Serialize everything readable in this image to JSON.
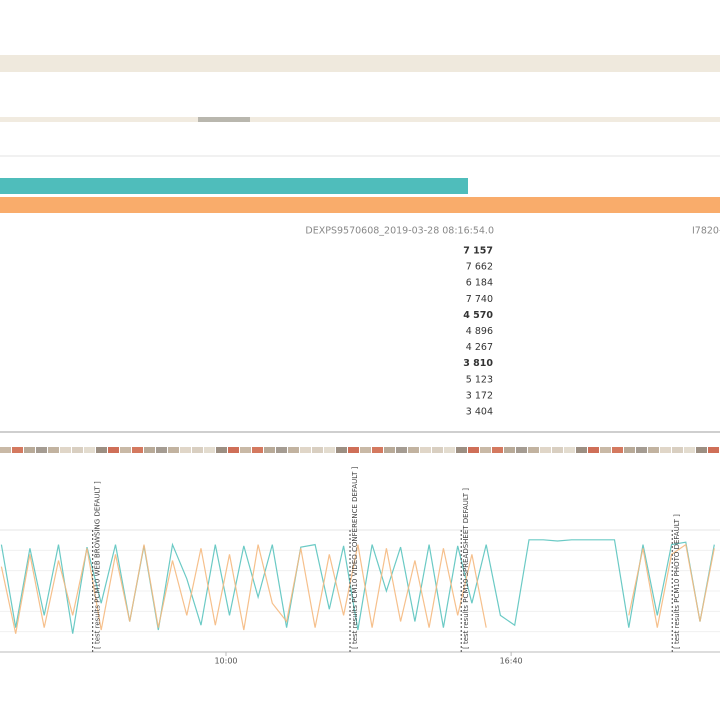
{
  "table": {
    "columns": [
      "DEXPS9570608_2019-03-28 08:16:54.0",
      "I7820-"
    ],
    "rows": [
      {
        "value": "7 157",
        "highlight": true
      },
      {
        "value": "7 662",
        "highlight": false
      },
      {
        "value": "6 184",
        "highlight": false
      },
      {
        "value": "7 740",
        "highlight": false
      },
      {
        "value": "4 570",
        "highlight": true
      },
      {
        "value": "4 896",
        "highlight": false
      },
      {
        "value": "4 267",
        "highlight": false
      },
      {
        "value": "3 810",
        "highlight": true
      },
      {
        "value": "5 123",
        "highlight": false
      },
      {
        "value": "3 172",
        "highlight": false
      },
      {
        "value": "3 404",
        "highlight": false
      }
    ]
  },
  "chart_data": {
    "type": "line",
    "x": [
      285,
      305,
      325,
      345,
      365,
      385,
      405,
      425,
      445,
      465,
      485,
      505,
      525,
      545,
      565,
      585,
      605,
      625,
      645,
      665,
      685,
      705,
      725,
      745,
      765,
      785,
      805,
      825,
      845,
      865,
      885,
      905,
      925,
      945,
      965,
      985,
      1005,
      1025,
      1045,
      1065,
      1085,
      1105,
      1125,
      1145,
      1165,
      1185,
      1205,
      1225,
      1245,
      1265,
      1285
    ],
    "xlim": [
      283,
      1293
    ],
    "xticks": [
      {
        "value": 600,
        "label": "10:00"
      },
      {
        "value": 1000,
        "label": "16:40"
      }
    ],
    "ylim": [
      0,
      100
    ],
    "series": [
      {
        "color": "#5bc4bf",
        "values": [
          88,
          20,
          85,
          30,
          88,
          15,
          86,
          40,
          88,
          25,
          87,
          18,
          88,
          60,
          22,
          88,
          30,
          87,
          45,
          88,
          20,
          86,
          88,
          35,
          87,
          18,
          88,
          50,
          86,
          25,
          88,
          20,
          87,
          40,
          88,
          30,
          22,
          92,
          92,
          91,
          92,
          92,
          92,
          92,
          20,
          88,
          30,
          88,
          90,
          25,
          88
        ]
      },
      {
        "color": "#f5b97f",
        "values": [
          70,
          15,
          80,
          20,
          75,
          30,
          85,
          18,
          80,
          25,
          88,
          20,
          75,
          30,
          85,
          22,
          80,
          18,
          88,
          40,
          25,
          85,
          20,
          80,
          30,
          88,
          20,
          85,
          25,
          75,
          20,
          85,
          30,
          80,
          20,
          null,
          null,
          null,
          null,
          null,
          null,
          null,
          null,
          null,
          30,
          85,
          20,
          80,
          88,
          25,
          85
        ]
      }
    ],
    "annotations": [
      {
        "x": 413,
        "text": "[ test results PCM10 WEB BROWSING DEFAULT ]"
      },
      {
        "x": 774,
        "text": "[ test results PCM10 VIDEO CONFERENCE DEFAULT ]"
      },
      {
        "x": 930,
        "text": "[ test results PCM10 SPREADSHEET DEFAULT ]"
      },
      {
        "x": 1226,
        "text": "[ test results PCM10 PHOTO DEFAULT ]"
      }
    ]
  }
}
